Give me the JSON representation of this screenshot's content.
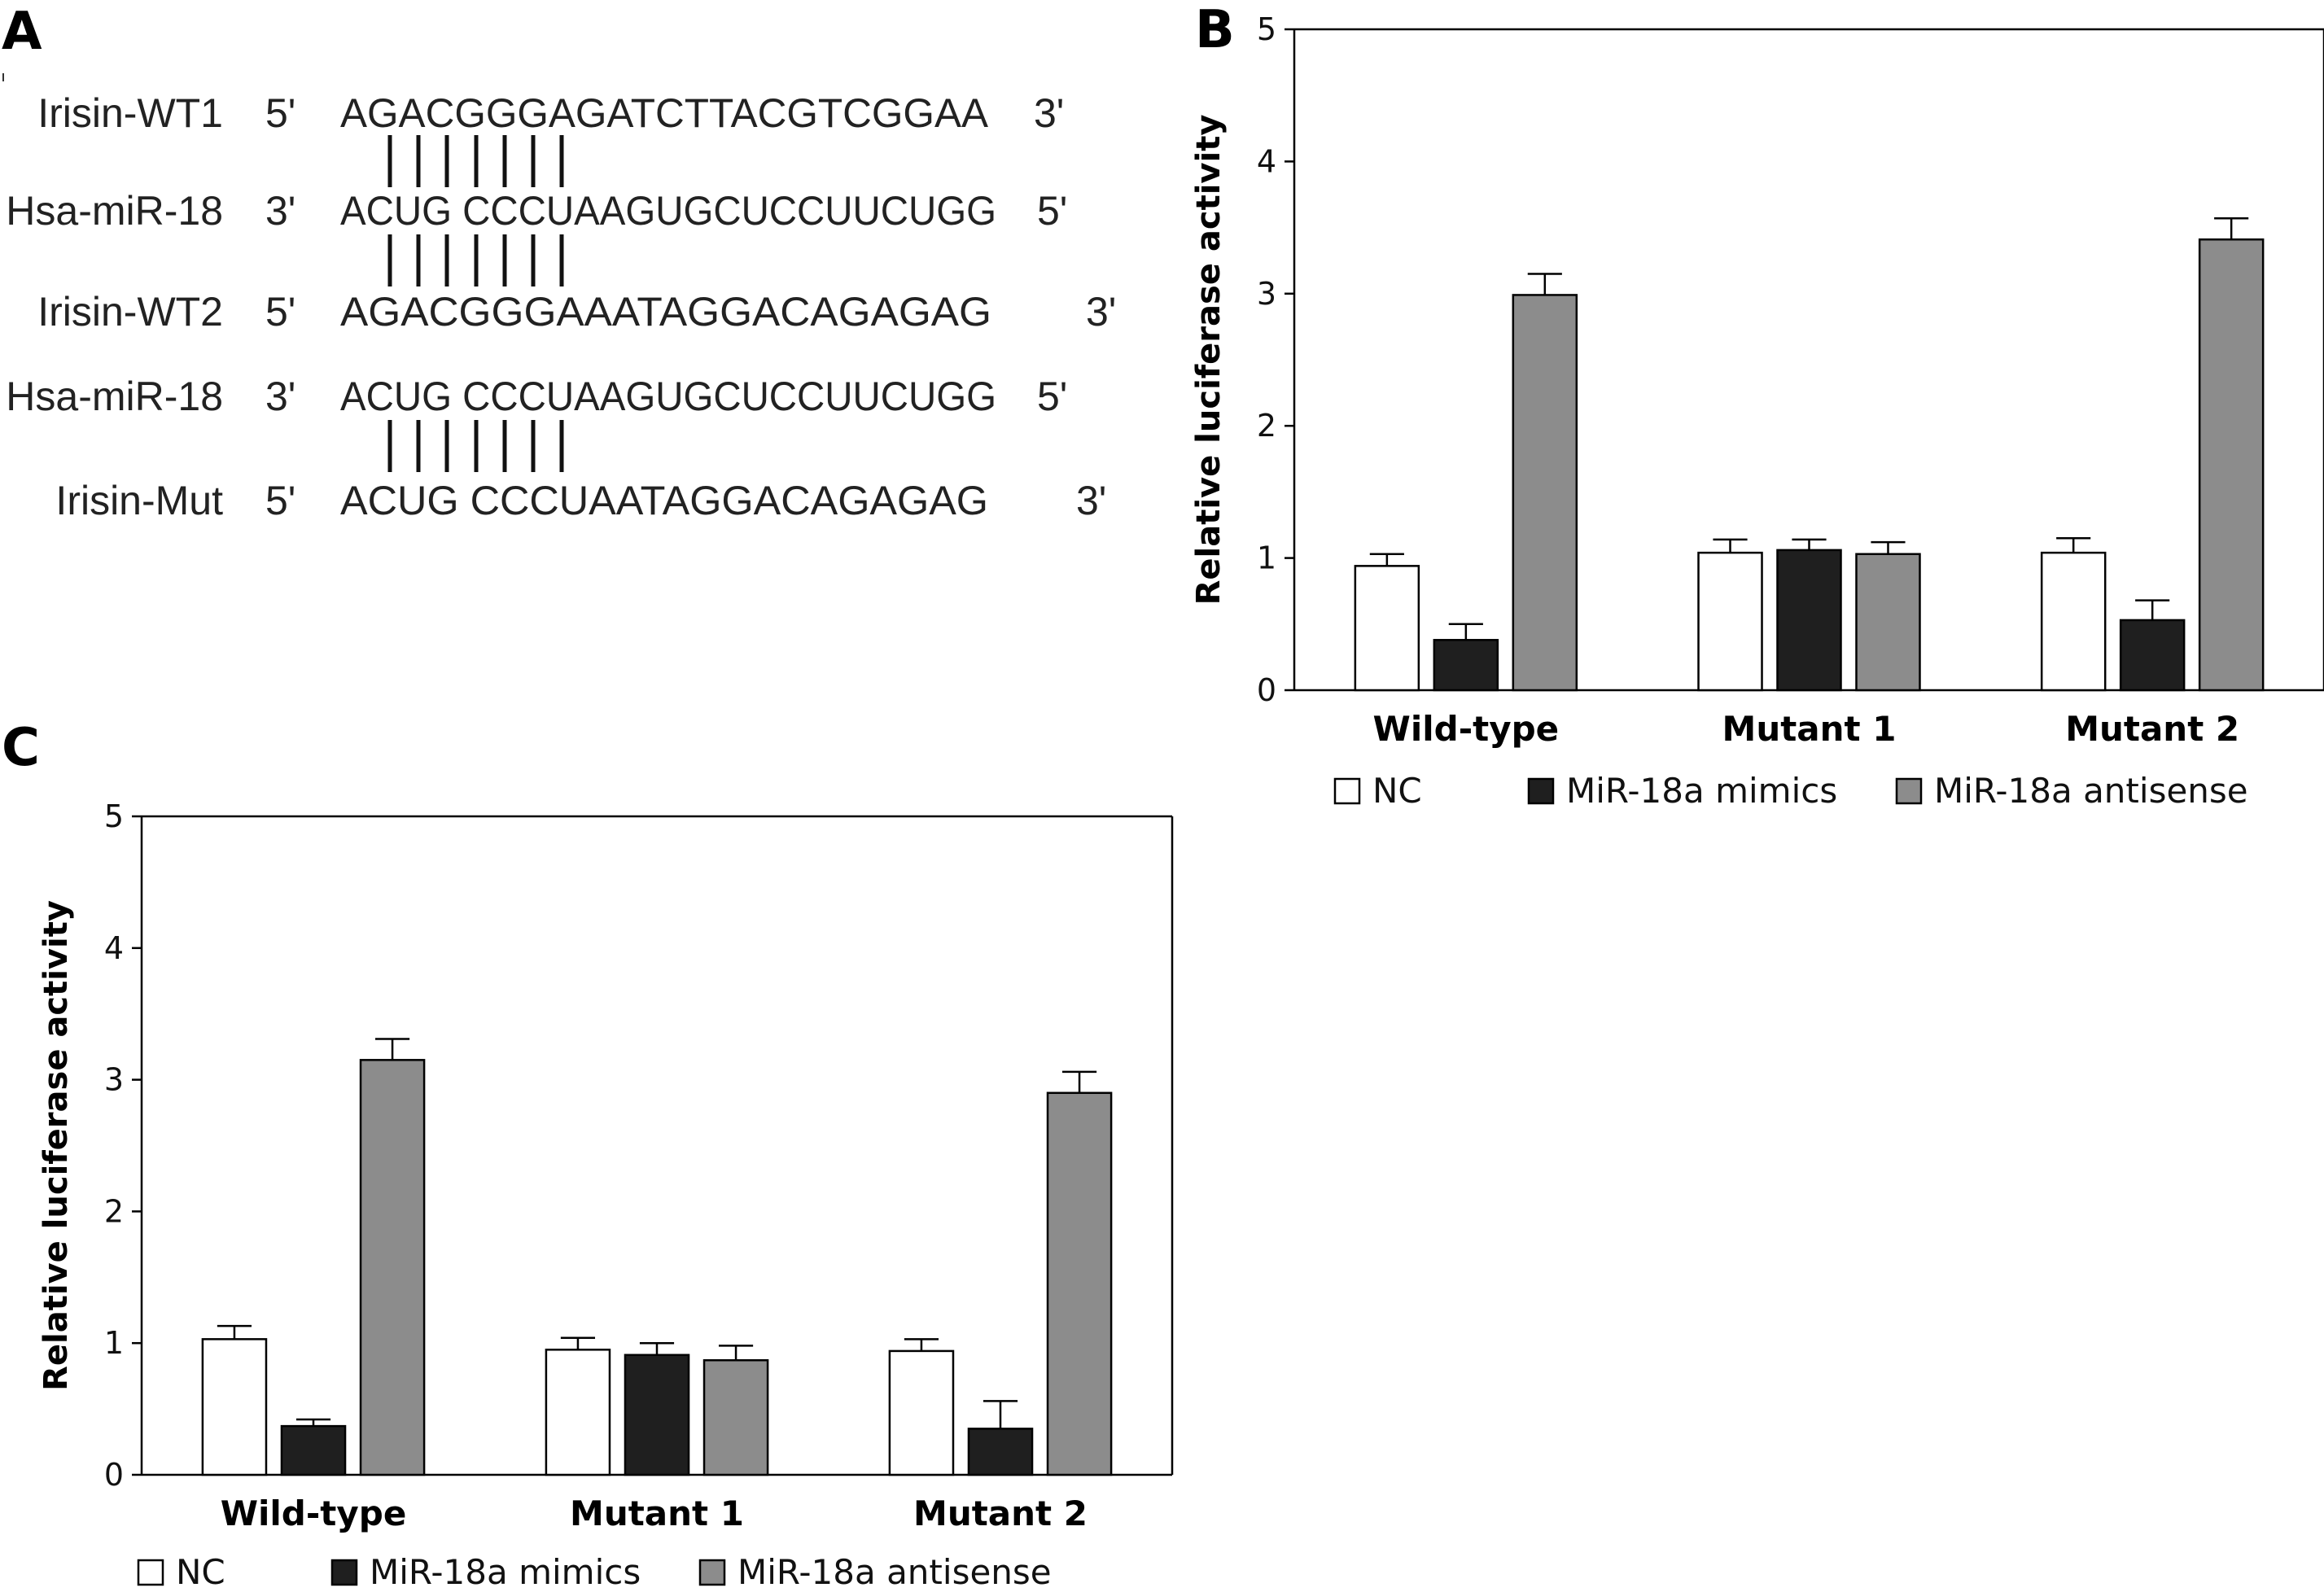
{
  "panel_a": {
    "letter": "A",
    "rows": [
      {
        "name": "Irisin-WT1",
        "p5": "5'",
        "seq": "AGACGGGAGATCTTACGTCGGAA",
        "p3": "3'"
      },
      {
        "name": "Hsa-miR-18",
        "p5": "3'",
        "seq": "ACUG CCCUAAGUGCUCCUUCUGG",
        "p3": "5'"
      },
      {
        "name": "Irisin-WT2",
        "p5": "5'",
        "seq": "AGACGGGAAATAGGACAGAGAG",
        "p3": "3'"
      },
      {
        "name": "Hsa-miR-18",
        "p5": "3'",
        "seq": "ACUG CCCUAAGUGCUCCUUCUGG",
        "p3": "5'"
      },
      {
        "name": "Irisin-Mut",
        "p5": "5'",
        "seq": "ACUG CCCUAATAGGACAGAGAG",
        "p3": "3'"
      }
    ]
  },
  "chart_data": [
    {
      "panel": "B",
      "type": "bar",
      "categories": [
        "Wild-type",
        "Mutant 1",
        "Mutant 2"
      ],
      "ylabel": "Relative luciferase activity",
      "ylim": [
        0,
        5
      ],
      "yticks": [
        "0",
        "1",
        "2",
        "3",
        "4",
        "5"
      ],
      "series": [
        {
          "name": "NC",
          "color": "#ffffff",
          "values": [
            0.94,
            1.04,
            1.04
          ],
          "errors": [
            0.09,
            0.1,
            0.11
          ]
        },
        {
          "name": "MiR-18a mimics",
          "color": "#1f1f1f",
          "values": [
            0.38,
            1.06,
            0.53
          ],
          "errors": [
            0.12,
            0.08,
            0.15
          ]
        },
        {
          "name": "MiR-18a antisense",
          "color": "#8c8c8c",
          "values": [
            2.99,
            1.03,
            3.41
          ],
          "errors": [
            0.16,
            0.09,
            0.16
          ]
        }
      ]
    },
    {
      "panel": "C",
      "type": "bar",
      "categories": [
        "Wild-type",
        "Mutant 1",
        "Mutant 2"
      ],
      "ylabel": "Relative luciferase activity",
      "ylim": [
        0,
        5
      ],
      "yticks": [
        "0",
        "1",
        "2",
        "3",
        "4",
        "5"
      ],
      "series": [
        {
          "name": "NC",
          "color": "#ffffff",
          "values": [
            1.03,
            0.95,
            0.94
          ],
          "errors": [
            0.1,
            0.09,
            0.09
          ]
        },
        {
          "name": "MiR-18a mimics",
          "color": "#1f1f1f",
          "values": [
            0.37,
            0.91,
            0.35
          ],
          "errors": [
            0.05,
            0.09,
            0.21
          ]
        },
        {
          "name": "MiR-18a antisense",
          "color": "#8c8c8c",
          "values": [
            3.15,
            0.87,
            2.9
          ],
          "errors": [
            0.16,
            0.11,
            0.16
          ]
        }
      ]
    }
  ]
}
